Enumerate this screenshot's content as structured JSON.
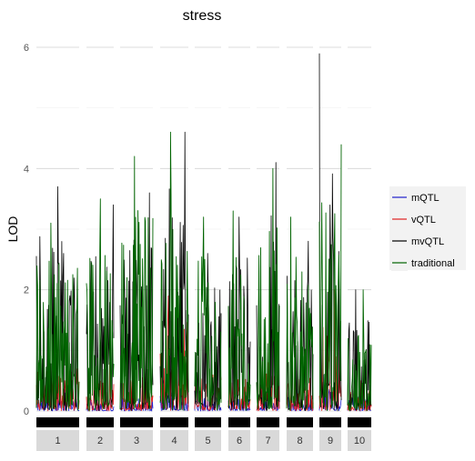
{
  "chart_data": {
    "type": "line",
    "title": "stress",
    "xlabel": "",
    "ylabel": "LOD",
    "ylim": [
      0,
      6.1
    ],
    "yticks": [
      0,
      2,
      4,
      6
    ],
    "grid": true,
    "legend_position": "right",
    "chromosomes": [
      "1",
      "2",
      "3",
      "4",
      "5",
      "6",
      "7",
      "8",
      "9",
      "10"
    ],
    "series": [
      {
        "name": "mQTL",
        "color": "#1f1fcc",
        "peaks": [
          0.35,
          0.3,
          0.35,
          0.5,
          0.3,
          0.25,
          0.4,
          0.35,
          0.6,
          0.3
        ]
      },
      {
        "name": "vQTL",
        "color": "#e02020",
        "peaks": [
          0.9,
          0.8,
          0.7,
          1.9,
          0.8,
          0.7,
          0.8,
          0.7,
          2.0,
          0.5
        ]
      },
      {
        "name": "mvQTL",
        "color": "#000000",
        "peaks": [
          3.7,
          3.4,
          3.6,
          4.6,
          2.6,
          3.2,
          4.1,
          2.8,
          5.9,
          2.0
        ]
      },
      {
        "name": "traditional",
        "color": "#006400",
        "peaks": [
          3.1,
          3.5,
          4.2,
          4.6,
          3.2,
          3.3,
          4.0,
          3.2,
          4.4,
          2.0
        ]
      }
    ]
  }
}
